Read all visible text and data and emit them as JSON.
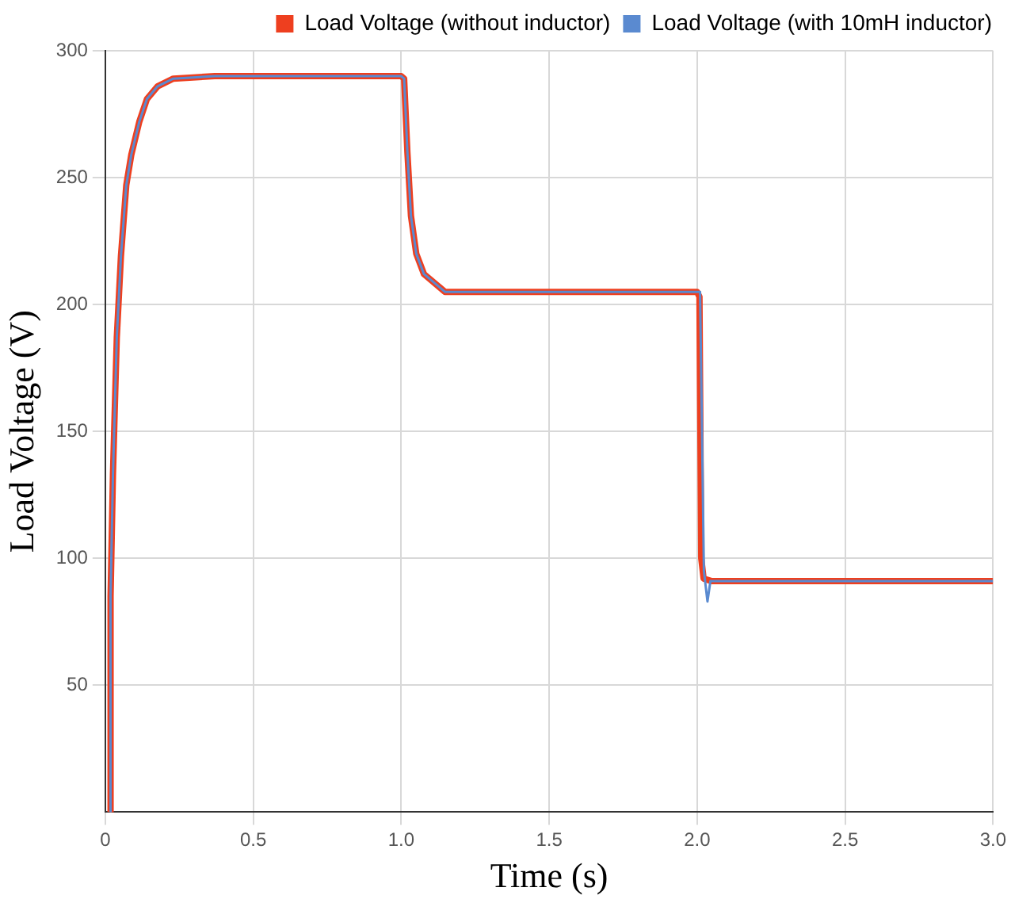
{
  "chart_data": {
    "type": "line",
    "xlabel": "Time (s)",
    "ylabel": "Load Voltage (V)",
    "xlim": [
      0,
      3
    ],
    "xticks": [
      0,
      0.5,
      {
        "value": 1,
        "label": "1.0"
      },
      1.5,
      {
        "value": 2,
        "label": "2.0"
      },
      2.5,
      {
        "value": 3,
        "label": "3.0"
      }
    ],
    "ylim": [
      0,
      300
    ],
    "yticks": [
      50,
      100,
      150,
      200,
      250,
      300
    ],
    "grid": true,
    "legend": "top right",
    "marker": "none",
    "line_style": "solid",
    "series": [
      {
        "name": "Load Voltage (without inductor)",
        "color": "#ee3f1f",
        "x": [
          0.016,
          0.018,
          0.026,
          0.039,
          0.053,
          0.071,
          0.088,
          0.115,
          0.141,
          0.177,
          0.23,
          0.37,
          1.0,
          1.01,
          1.021,
          1.033,
          1.051,
          1.077,
          1.148,
          2.0,
          2.008,
          2.014,
          2.022,
          2.05,
          3.0
        ],
        "values": [
          0,
          85,
          133,
          187,
          219,
          247,
          259,
          272,
          281,
          286,
          289,
          290,
          290,
          289,
          260,
          235,
          220,
          212,
          205,
          205,
          203,
          100,
          92,
          91,
          91
        ]
      },
      {
        "name": "Load Voltage (with 10mH inductor)",
        "color": "#5a8ad0",
        "x": [
          0.016,
          0.018,
          0.026,
          0.039,
          0.053,
          0.071,
          0.088,
          0.115,
          0.141,
          0.177,
          0.23,
          0.37,
          1.0,
          1.01,
          1.021,
          1.033,
          1.051,
          1.077,
          1.148,
          2.0,
          2.01,
          2.023,
          2.035,
          2.045,
          3.0
        ],
        "values": [
          0,
          85,
          133,
          187,
          219,
          247,
          259,
          272,
          281,
          286,
          289,
          290,
          290,
          289,
          260,
          235,
          220,
          212,
          205,
          205,
          205,
          95,
          83,
          91,
          91
        ]
      }
    ]
  }
}
